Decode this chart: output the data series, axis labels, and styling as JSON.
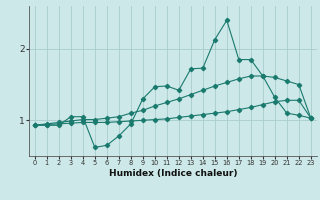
{
  "xlabel": "Humidex (Indice chaleur)",
  "background_color": "#cce8e8",
  "grid_color": "#aacccc",
  "line_color": "#1a7a6e",
  "x_values": [
    0,
    1,
    2,
    3,
    4,
    5,
    6,
    7,
    8,
    9,
    10,
    11,
    12,
    13,
    14,
    15,
    16,
    17,
    18,
    19,
    20,
    21,
    22,
    23
  ],
  "line_data": [
    0.93,
    0.93,
    0.93,
    1.05,
    1.05,
    0.62,
    0.65,
    0.78,
    0.95,
    1.3,
    1.47,
    1.48,
    1.42,
    1.72,
    1.73,
    2.13,
    2.4,
    1.85,
    1.85,
    1.62,
    1.32,
    1.1,
    1.07,
    1.03
  ],
  "line_upper": [
    0.93,
    0.95,
    0.97,
    0.99,
    1.01,
    1.01,
    1.03,
    1.05,
    1.1,
    1.14,
    1.2,
    1.25,
    1.3,
    1.36,
    1.42,
    1.48,
    1.53,
    1.58,
    1.62,
    1.62,
    1.6,
    1.55,
    1.5,
    1.03
  ],
  "line_lower": [
    0.93,
    0.94,
    0.95,
    0.96,
    0.97,
    0.97,
    0.97,
    0.98,
    0.99,
    1.0,
    1.01,
    1.02,
    1.04,
    1.06,
    1.08,
    1.1,
    1.12,
    1.15,
    1.18,
    1.22,
    1.26,
    1.28,
    1.28,
    1.03
  ],
  "ylim": [
    0.5,
    2.6
  ],
  "yticks": [
    1,
    2
  ],
  "xlim": [
    -0.5,
    23.5
  ]
}
